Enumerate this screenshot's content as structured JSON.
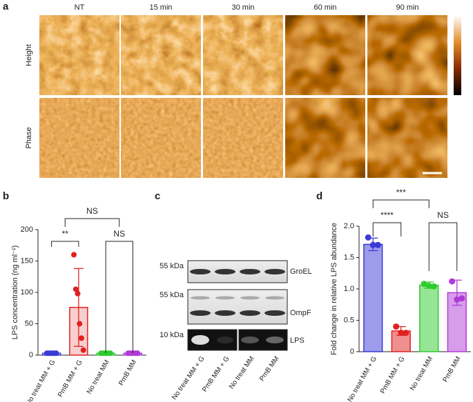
{
  "panels": {
    "a": {
      "label": "a",
      "columns": [
        "NT",
        "15 min",
        "30 min",
        "60 min",
        "90 min"
      ],
      "rows": [
        "Height",
        "Phase"
      ]
    },
    "b": {
      "label": "b"
    },
    "c": {
      "label": "c",
      "blots": [
        {
          "marker": "55 kDa",
          "name": "GroEL"
        },
        {
          "marker": "55 kDa",
          "name": "OmpF"
        },
        {
          "marker": "10 kDa",
          "name": "LPS"
        }
      ],
      "lanes": [
        "No treat MM + G",
        "PmB MM + G",
        "No treat MM",
        "PmB MM"
      ]
    },
    "d": {
      "label": "d"
    }
  },
  "chart_data": [
    {
      "type": "bar",
      "ylabel": "LPS concentration (ng ml⁻¹)",
      "categories": [
        "No treat MM + G",
        "PmB MM + G",
        "No treat MM",
        "PmB MM"
      ],
      "colors": [
        "#3a3ad6",
        "#e02020",
        "#2ecc2e",
        "#b03ad6"
      ],
      "values": [
        3,
        76,
        3,
        3
      ],
      "errors": [
        1,
        62,
        1,
        1
      ],
      "points": [
        [
          3,
          3,
          3,
          3,
          3,
          3
        ],
        [
          160,
          105,
          98,
          50,
          27,
          8
        ],
        [
          3,
          3,
          3,
          3,
          3,
          3
        ],
        [
          3,
          3,
          3,
          3,
          3,
          3
        ]
      ],
      "annotations": [
        "NS",
        "**",
        "NS"
      ],
      "ylim": [
        0,
        200
      ],
      "yticks": [
        0,
        50,
        100,
        150,
        200
      ]
    },
    {
      "type": "bar",
      "ylabel": "Fold change in relative LPS abundance",
      "categories": [
        "No treat MM + G",
        "PmB MM + G",
        "No treat MM",
        "PmB MM"
      ],
      "colors": [
        "#3a3ad6",
        "#e02020",
        "#2ecc2e",
        "#b03ad6"
      ],
      "values": [
        1.71,
        0.33,
        1.06,
        0.94
      ],
      "errors": [
        0.1,
        0.07,
        0.05,
        0.2
      ],
      "points": [
        [
          1.82,
          1.7,
          1.7
        ],
        [
          0.4,
          0.3,
          0.3
        ],
        [
          1.08,
          1.05,
          1.04
        ],
        [
          1.12,
          0.83,
          0.85
        ]
      ],
      "annotations": [
        "***",
        "****",
        "NS"
      ],
      "ylim": [
        0,
        2.0
      ],
      "yticks": [
        0,
        0.5,
        {
          "value": 1.0,
          "label": "1.0"
        },
        1.5,
        {
          "value": 2.0,
          "label": "2.0"
        }
      ]
    }
  ]
}
